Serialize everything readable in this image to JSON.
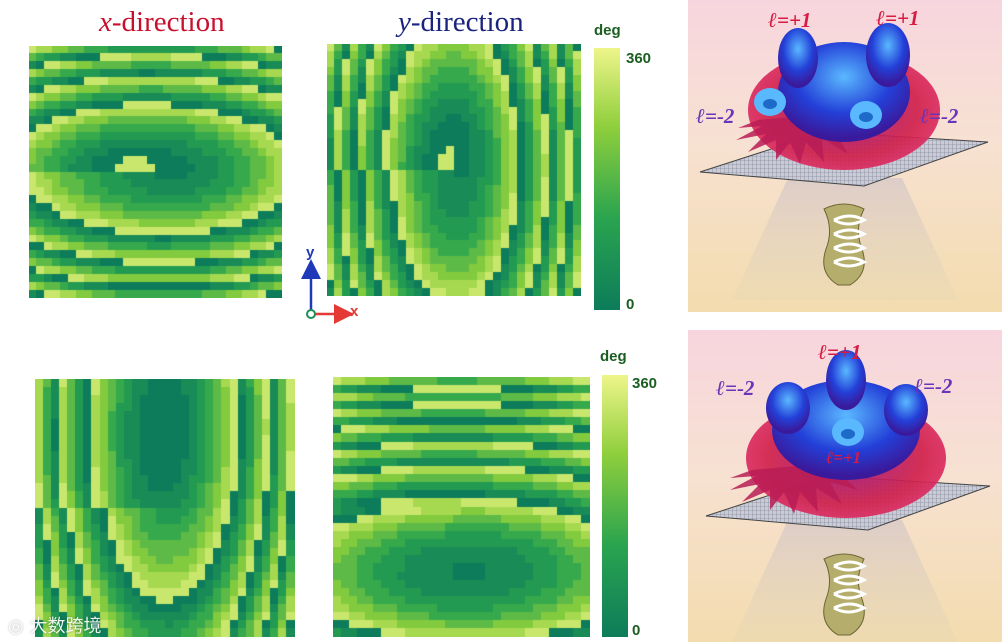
{
  "headings": {
    "x_prefix": "x",
    "x_suffix": "-direction",
    "y_prefix": "y",
    "y_suffix": "-direction"
  },
  "colorbars": [
    {
      "unit": "deg",
      "max_label": "360",
      "min_label": "0"
    },
    {
      "unit": "deg",
      "max_label": "360",
      "min_label": "0"
    }
  ],
  "axes": {
    "x_label": "x",
    "y_label": "y",
    "x_color": "#e53935",
    "y_color": "#1e3ab8"
  },
  "colormap": [
    "#0d7c5a",
    "#2aa44f",
    "#8fcf3c",
    "#eef58a"
  ],
  "panels": {
    "top": {
      "labels": [
        {
          "text": "ℓ=+1",
          "tone": "red"
        },
        {
          "text": "ℓ=+1",
          "tone": "red"
        },
        {
          "text": "ℓ=-2",
          "tone": "purple"
        },
        {
          "text": "ℓ=-2",
          "tone": "purple"
        }
      ]
    },
    "bottom": {
      "labels": [
        {
          "text": "ℓ=+1",
          "tone": "red"
        },
        {
          "text": "ℓ=-2",
          "tone": "purple"
        },
        {
          "text": "ℓ=-2",
          "tone": "purple"
        },
        {
          "text": "ℓ=+1",
          "tone": "red"
        }
      ]
    }
  },
  "watermark": "大数跨境"
}
